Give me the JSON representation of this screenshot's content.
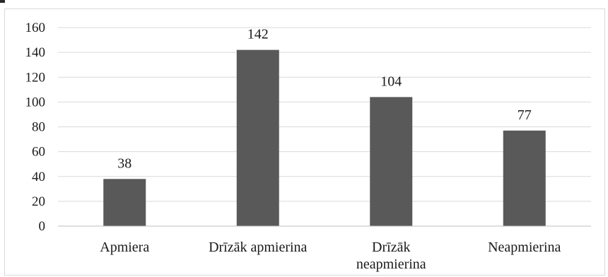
{
  "chart_data": {
    "type": "bar",
    "title": "",
    "xlabel": "",
    "ylabel": "",
    "categories": [
      "Apmiera",
      "Drīzāk apmierina",
      "Drīzāk\nneapmierina",
      "Neapmierina"
    ],
    "values": [
      38,
      142,
      104,
      77
    ],
    "data_labels": [
      "38",
      "142",
      "104",
      "77"
    ],
    "ylim": [
      0,
      160
    ],
    "y_ticks": [
      0,
      20,
      40,
      60,
      80,
      100,
      120,
      140,
      160
    ],
    "y_tick_labels": [
      "0",
      "20",
      "40",
      "60",
      "80",
      "100",
      "120",
      "140",
      "160"
    ],
    "grid": true,
    "legend": "none",
    "colors": {
      "bar": "#595959",
      "grid": "#d9d9d9",
      "axis": "#bfbfbf",
      "text": "#1a1a1a",
      "frame": "#d9d9d9"
    }
  }
}
